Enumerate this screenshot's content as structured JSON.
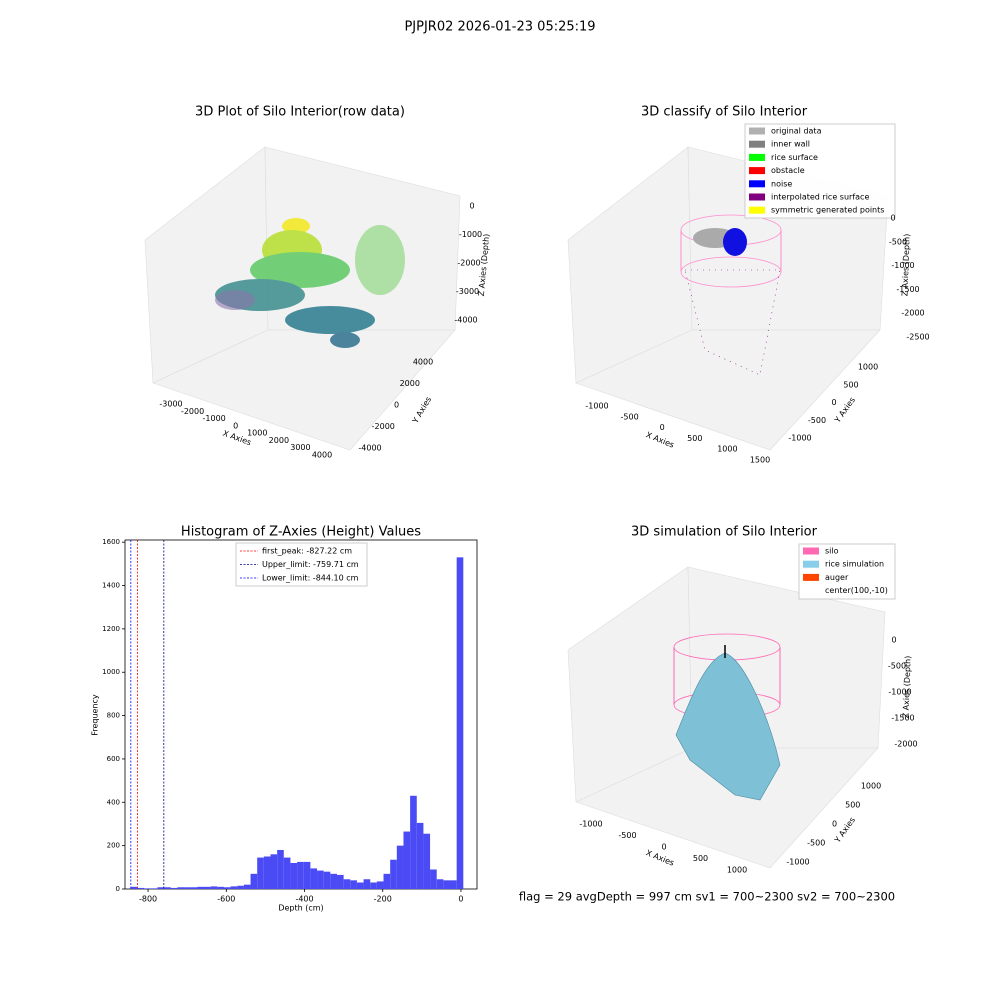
{
  "title": "PJPJR02 2026-01-23 05:25:19",
  "panels": [
    {
      "title": "3D Plot of Silo Interior(row data)",
      "xlabel": "X Axies",
      "ylabel": "Y Axies",
      "zlabel": "Z Axies (Depth)",
      "xticks": [
        -3000,
        -2000,
        -1000,
        0,
        1000,
        2000,
        3000,
        4000
      ],
      "yticks": [
        -4000,
        -2000,
        0,
        2000,
        4000
      ],
      "zticks": [
        0,
        -1000,
        -2000,
        -3000,
        -4000
      ]
    },
    {
      "title": "3D classify of Silo Interior",
      "xlabel": "X Axies",
      "ylabel": "Y Axies",
      "zlabel": "Z Axies (Depth)",
      "xticks": [
        -1000,
        -500,
        0,
        500,
        1000,
        1500
      ],
      "yticks": [
        -1000,
        -500,
        0,
        500,
        1000
      ],
      "zticks": [
        0,
        -500,
        -1000,
        -1500,
        -2000,
        -2500
      ],
      "legend": [
        {
          "name": "original data",
          "color": "#b0b0b0"
        },
        {
          "name": "inner wall",
          "color": "#808080"
        },
        {
          "name": "rice surface",
          "color": "#00ff00"
        },
        {
          "name": "obstacle",
          "color": "#ff0000"
        },
        {
          "name": "noise",
          "color": "#0000ff"
        },
        {
          "name": "interpolated rice surface",
          "color": "#800080"
        },
        {
          "name": "symmetric generated points",
          "color": "#ffff00"
        }
      ]
    },
    {
      "title": "3D simulation of Silo Interior",
      "xlabel": "X Axies",
      "ylabel": "Y Axies",
      "zlabel": "Z Axies (Depth)",
      "xticks": [
        -1000,
        -500,
        0,
        500,
        1000
      ],
      "yticks": [
        -1000,
        -500,
        0,
        500,
        1000
      ],
      "zticks": [
        0,
        -500,
        -1000,
        -1500,
        -2000
      ],
      "legend": [
        {
          "name": "silo",
          "color": "#ff69b4"
        },
        {
          "name": "rice simulation",
          "color": "#87ceeb"
        },
        {
          "name": "auger",
          "color": "#ff4500"
        },
        {
          "name": "center(100,-10)",
          "color": null
        }
      ]
    }
  ],
  "chart_data": {
    "type": "histogram",
    "title": "Histogram of Z-Axies (Height) Values",
    "xlabel": "Depth (cm)",
    "ylabel": "Frequency",
    "color": "#4b4bf5",
    "bins": [
      -844,
      -827,
      -810,
      -793,
      -776,
      -759,
      -742,
      -725,
      -708,
      -691,
      -674,
      -657,
      -640,
      -623,
      -606,
      -589,
      -572,
      -555,
      -538,
      -521,
      -504,
      -487,
      -470,
      -453,
      -436,
      -419,
      -402,
      -385,
      -368,
      -351,
      -334,
      -317,
      -300,
      -283,
      -266,
      -249,
      -232,
      -215,
      -198,
      -181,
      -164,
      -147,
      -130,
      -113,
      -96,
      -79,
      -62,
      -45,
      -28,
      -11,
      6
    ],
    "values": [
      10,
      5,
      3,
      3,
      8,
      8,
      5,
      8,
      8,
      8,
      10,
      10,
      12,
      10,
      8,
      12,
      15,
      20,
      70,
      145,
      150,
      160,
      180,
      145,
      120,
      125,
      125,
      95,
      85,
      80,
      70,
      65,
      45,
      40,
      30,
      45,
      30,
      35,
      70,
      135,
      200,
      265,
      430,
      305,
      255,
      90,
      45,
      40,
      40,
      1530
    ],
    "lines": [
      {
        "name": "first_peak: -827.22 cm",
        "value": -827.22,
        "color": "#ff0000"
      },
      {
        "name": "Upper_limit: -759.71 cm",
        "value": -759.71,
        "color": "#00008b"
      },
      {
        "name": "Lower_limit: -844.10 cm",
        "value": -844.1,
        "color": "#0000ff"
      }
    ],
    "xlim": [
      -859,
      41
    ],
    "ylim": [
      0,
      1610
    ],
    "xticks": [
      -800,
      -600,
      -400,
      -200,
      0
    ],
    "yticks": [
      0,
      200,
      400,
      600,
      800,
      1000,
      1200,
      1400,
      1600
    ]
  },
  "footer": "flag = 29  avgDepth = 997 cm  sv1 = 700~2300  sv2 = 700~2300"
}
